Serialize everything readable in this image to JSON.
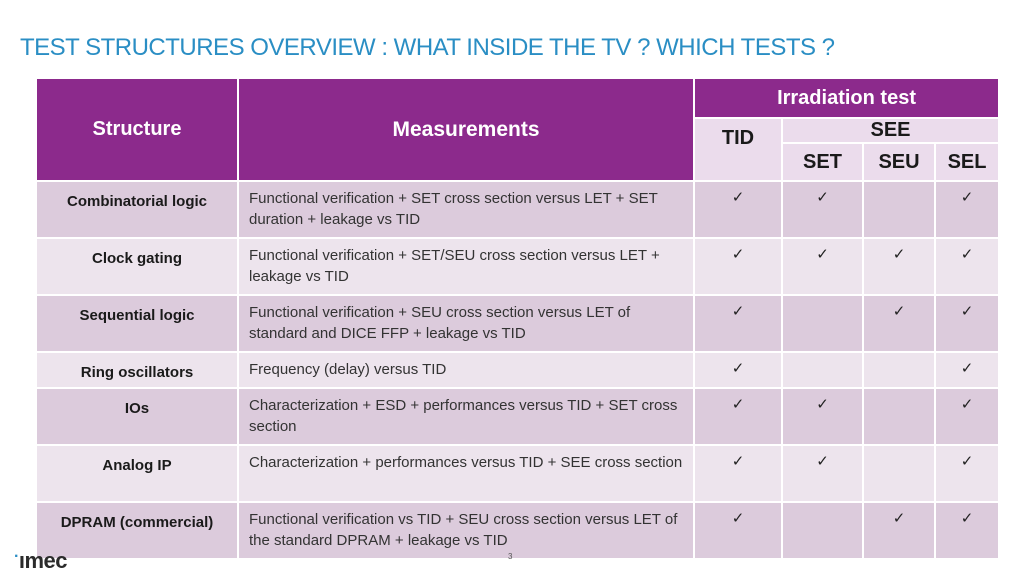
{
  "title": "TEST STRUCTURES OVERVIEW : WHAT INSIDE THE TV ? WHICH TESTS ?",
  "table": {
    "header": {
      "structure": "Structure",
      "measurements": "Measurements",
      "irradiation": "Irradiation test",
      "tid": "TID",
      "see": "SEE",
      "set": "SET",
      "seu": "SEU",
      "sel": "SEL"
    },
    "rows": [
      {
        "name": "Combinatorial logic",
        "measurement": "Functional verification + SET cross section versus LET + SET duration + leakage vs TID",
        "tid": "✓",
        "set": "✓",
        "seu": "",
        "sel": "✓"
      },
      {
        "name": "Clock gating",
        "measurement": "Functional verification + SET/SEU cross section versus LET + leakage vs TID",
        "tid": "✓",
        "set": "✓",
        "seu": "✓",
        "sel": "✓"
      },
      {
        "name": "Sequential logic",
        "measurement": "Functional verification + SEU cross section versus LET of standard and DICE FFP + leakage vs TID",
        "tid": "✓",
        "set": "",
        "seu": "✓",
        "sel": "✓"
      },
      {
        "name": "Ring oscillators",
        "measurement": "Frequency (delay) versus TID",
        "tid": "✓",
        "set": "",
        "seu": "",
        "sel": "✓"
      },
      {
        "name": "IOs",
        "measurement": "Characterization + ESD + performances versus TID + SET cross section",
        "tid": "✓",
        "set": "✓",
        "seu": "",
        "sel": "✓"
      },
      {
        "name": "Analog IP",
        "measurement": "Characterization + performances versus TID + SEE cross section",
        "tid": "✓",
        "set": "✓",
        "seu": "",
        "sel": "✓"
      },
      {
        "name": "DPRAM (commercial)",
        "measurement": "Functional verification vs TID + SEU cross section versus LET of the standard DPRAM + leakage vs TID",
        "tid": "✓",
        "set": "",
        "seu": "✓",
        "sel": "✓"
      }
    ]
  },
  "footer": {
    "logo": "ımec",
    "page_number": "3"
  },
  "colors": {
    "title": "#2a8ec4",
    "header_purple": "#8c2a8c",
    "row_dark": "#dccbdc",
    "row_light": "#ede4ed"
  }
}
